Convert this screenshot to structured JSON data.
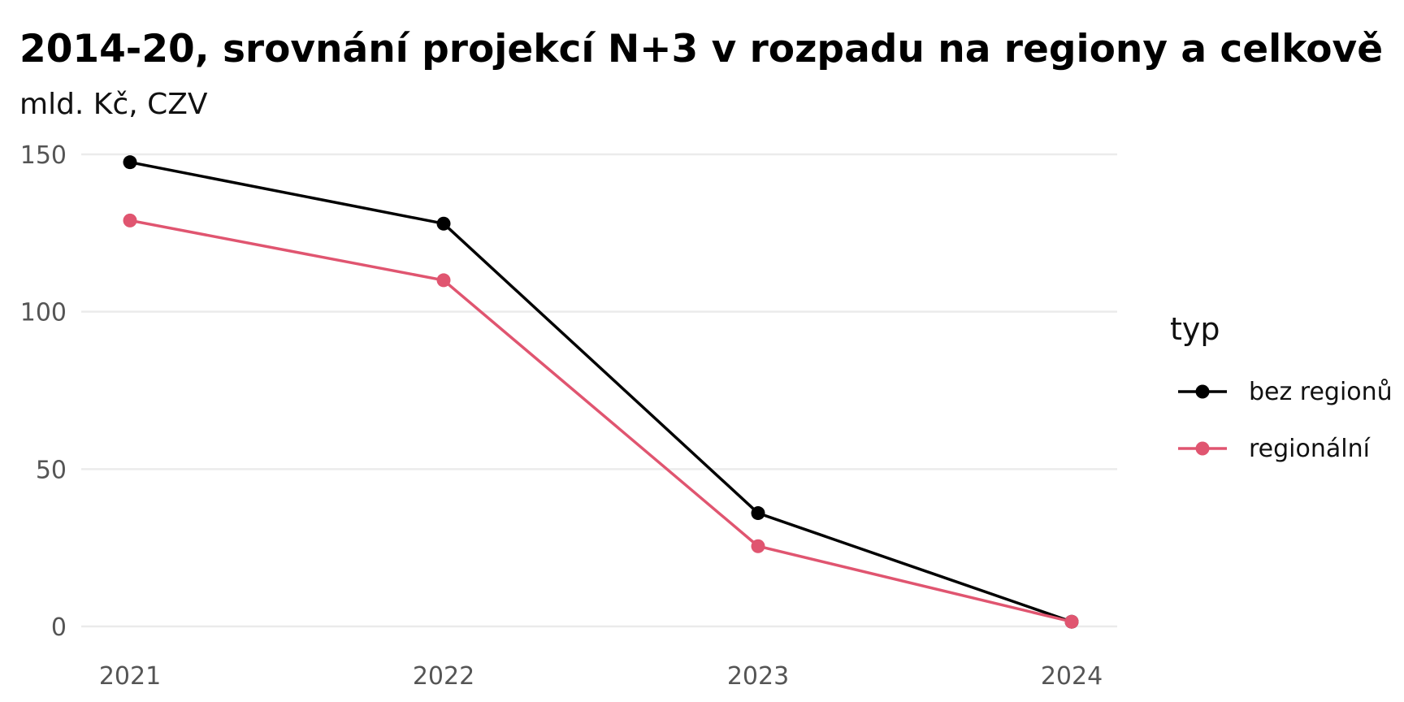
{
  "chart_data": {
    "type": "line",
    "title": "2014-20, srovnání projekcí N+3 v rozpadu na regiony a celkově",
    "subtitle": "mld. Kč, CZV",
    "xlabel": "",
    "ylabel": "",
    "x": [
      "2021",
      "2022",
      "2023",
      "2024"
    ],
    "ylim": [
      0,
      150
    ],
    "yticks": [
      "0",
      "50",
      "100",
      "150"
    ],
    "grid": "horizontal",
    "legend": {
      "title": "typ",
      "position": "right"
    },
    "series": [
      {
        "name": "bez regionů",
        "color": "#000000",
        "values": [
          147.5,
          128,
          36,
          1.5
        ]
      },
      {
        "name": "regionální",
        "color": "#e05570",
        "values": [
          129,
          110,
          25.5,
          1.5
        ]
      }
    ]
  }
}
